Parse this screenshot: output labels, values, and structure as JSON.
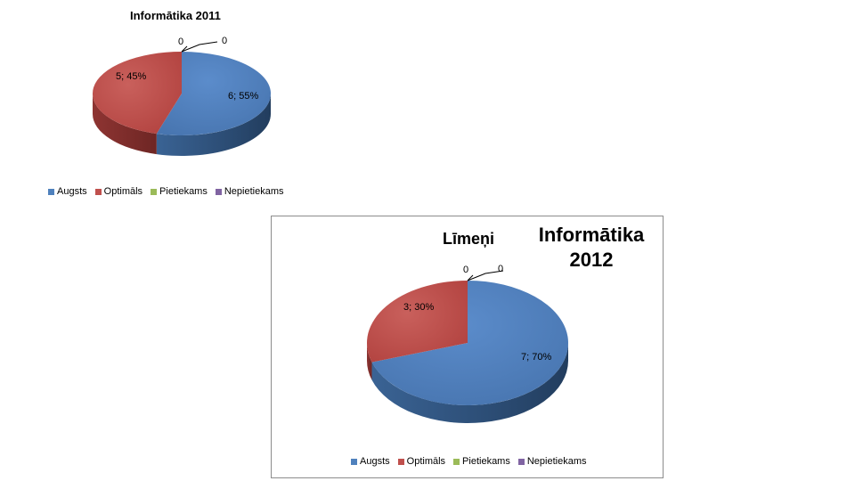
{
  "chart_data": [
    {
      "type": "pie",
      "title": "Informātika 2011",
      "categories": [
        "Augsts",
        "Optimāls",
        "Pietiekams",
        "Nepietiekams"
      ],
      "values": [
        6,
        5,
        0,
        0
      ],
      "percent": [
        "55%",
        "45%",
        "",
        ""
      ],
      "data_labels": [
        "6; 55%",
        "5; 45%",
        "0",
        "0"
      ],
      "legend_position": "bottom",
      "colors": [
        "#4f81bd",
        "#c0504d",
        "#9bbb59",
        "#8064a2"
      ]
    },
    {
      "type": "pie",
      "title": "Informātika 2012",
      "subtitle": "Līmeņi",
      "categories": [
        "Augsts",
        "Optimāls",
        "Pietiekams",
        "Nepietiekams"
      ],
      "values": [
        7,
        3,
        0,
        0
      ],
      "percent": [
        "70%",
        "30%",
        "",
        ""
      ],
      "data_labels": [
        "7; 70%",
        "3; 30%",
        "0",
        "0"
      ],
      "legend_position": "bottom",
      "colors": [
        "#4f81bd",
        "#c0504d",
        "#9bbb59",
        "#8064a2"
      ]
    }
  ]
}
